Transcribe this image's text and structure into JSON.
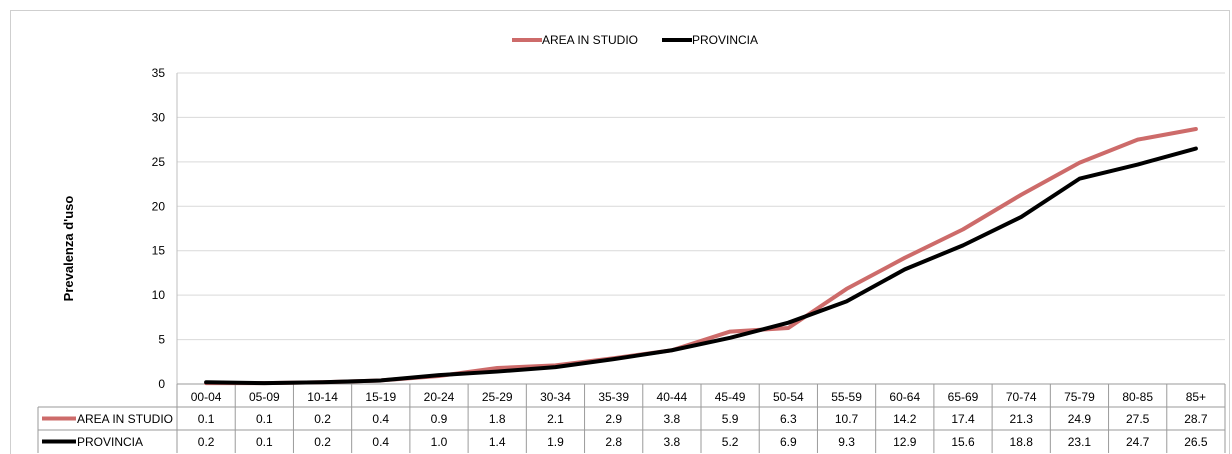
{
  "chart_data": {
    "type": "line",
    "ylabel": "Prevalenza d'uso",
    "xlabel": "",
    "ylim": [
      0,
      35
    ],
    "yticks": [
      0,
      5,
      10,
      15,
      20,
      25,
      30,
      35
    ],
    "grid": true,
    "legend_position": "top-center",
    "categories": [
      "00-04",
      "05-09",
      "10-14",
      "15-19",
      "20-24",
      "25-29",
      "30-34",
      "35-39",
      "40-44",
      "45-49",
      "50-54",
      "55-59",
      "60-64",
      "65-69",
      "70-74",
      "75-79",
      "80-85",
      "85+"
    ],
    "series": [
      {
        "name": "AREA IN STUDIO",
        "color": "#cd6b6a",
        "values": [
          0.1,
          0.1,
          0.2,
          0.4,
          0.9,
          1.8,
          2.1,
          2.9,
          3.8,
          5.9,
          6.3,
          10.7,
          14.2,
          17.4,
          21.3,
          24.9,
          27.5,
          28.7
        ]
      },
      {
        "name": "PROVINCIA",
        "color": "#000000",
        "values": [
          0.2,
          0.1,
          0.2,
          0.4,
          1.0,
          1.4,
          1.9,
          2.8,
          3.8,
          5.2,
          6.9,
          9.3,
          12.9,
          15.6,
          18.8,
          23.1,
          24.7,
          26.5
        ]
      }
    ],
    "table_values": [
      [
        "0.1",
        "0.1",
        "0.2",
        "0.4",
        "0.9",
        "1.8",
        "2.1",
        "2.9",
        "3.8",
        "5.9",
        "6.3",
        "10.7",
        "14.2",
        "17.4",
        "21.3",
        "24.9",
        "27.5",
        "28.7"
      ],
      [
        "0.2",
        "0.1",
        "0.2",
        "0.4",
        "1.0",
        "1.4",
        "1.9",
        "2.8",
        "3.8",
        "5.2",
        "6.9",
        "9.3",
        "12.9",
        "15.6",
        "18.8",
        "23.1",
        "24.7",
        "26.5"
      ]
    ]
  }
}
